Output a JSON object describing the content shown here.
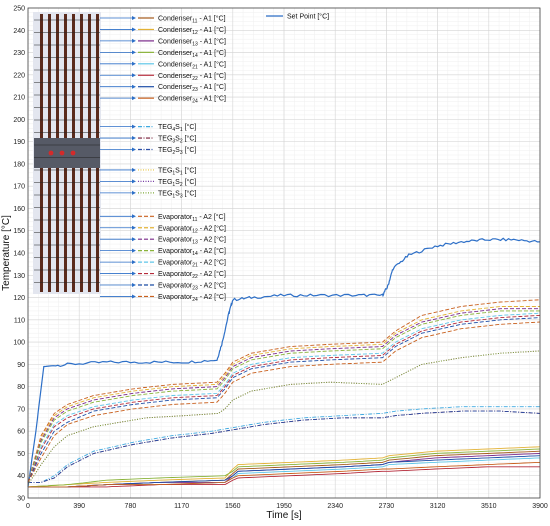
{
  "chart_data": {
    "type": "line",
    "xlabel": "Time [s]",
    "ylabel": "Temperature [°C]",
    "xlim": [
      0,
      3900
    ],
    "ylim": [
      30,
      250
    ],
    "xticks": [
      0,
      390,
      780,
      1170,
      1560,
      1950,
      2340,
      2730,
      3120,
      3510,
      3900
    ],
    "yticks": [
      30,
      40,
      50,
      60,
      70,
      80,
      90,
      100,
      110,
      120,
      130,
      140,
      150,
      160,
      170,
      180,
      190,
      200,
      210,
      220,
      230,
      240,
      250
    ],
    "grid": true,
    "legend_placement": "top-left",
    "series": [
      {
        "name": "Set Point [°C]",
        "color": "#2d6fc7",
        "dash": "solid",
        "x": [
          0,
          60,
          120,
          300,
          600,
          900,
          1200,
          1440,
          1480,
          1530,
          1560,
          1700,
          1950,
          2200,
          2500,
          2700,
          2740,
          2780,
          2900,
          3100,
          3300,
          3500,
          3700,
          3900
        ],
        "y": [
          35,
          60,
          89,
          90,
          91,
          91,
          91,
          92,
          100,
          113,
          119,
          120,
          121,
          121,
          121,
          121,
          125,
          133,
          139,
          143,
          145,
          146,
          146,
          145
        ]
      },
      {
        "name": "Condenser11 - A1 [°C]",
        "color": "#a55a1c",
        "dash": "solid",
        "x": [
          0,
          300,
          600,
          1000,
          1500,
          1560,
          1600,
          2000,
          2400,
          2700,
          2750,
          3100,
          3500,
          3900
        ],
        "y": [
          35,
          35,
          36,
          37,
          38,
          41,
          43,
          44,
          45,
          46,
          47,
          49,
          50,
          51
        ]
      },
      {
        "name": "Condenser12 - A1 [°C]",
        "color": "#e3b236",
        "dash": "solid",
        "x": [
          0,
          300,
          600,
          1000,
          1500,
          1560,
          1600,
          2000,
          2400,
          2700,
          2750,
          3100,
          3500,
          3900
        ],
        "y": [
          35,
          36,
          37,
          38,
          39,
          43,
          45,
          46,
          47,
          48,
          49,
          51,
          52,
          53
        ]
      },
      {
        "name": "Condenser13 - A1 [°C]",
        "color": "#7a2a8a",
        "dash": "solid",
        "x": [
          0,
          300,
          600,
          1000,
          1500,
          1560,
          1600,
          2000,
          2400,
          2700,
          2750,
          3100,
          3500,
          3900
        ],
        "y": [
          35,
          35,
          36,
          37,
          37,
          40,
          42,
          43,
          44,
          45,
          46,
          48,
          49,
          50
        ]
      },
      {
        "name": "Condenser14 - A1 [°C]",
        "color": "#8ab33a",
        "dash": "solid",
        "x": [
          0,
          300,
          600,
          1000,
          1500,
          1560,
          1600,
          2000,
          2400,
          2700,
          2750,
          3100,
          3500,
          3900
        ],
        "y": [
          35,
          36,
          38,
          39,
          40,
          42,
          44,
          45,
          46,
          47,
          48,
          50,
          51,
          52
        ]
      },
      {
        "name": "Condenser21 - A1 [°C]",
        "color": "#5fc6e8",
        "dash": "solid",
        "x": [
          0,
          300,
          600,
          1000,
          1500,
          1560,
          1600,
          2000,
          2400,
          2700,
          2750,
          3100,
          3500,
          3900
        ],
        "y": [
          35,
          35,
          36,
          36,
          37,
          39,
          41,
          42,
          43,
          44,
          45,
          46,
          47,
          48
        ]
      },
      {
        "name": "Condenser22 - A1 [°C]",
        "color": "#b52a3a",
        "dash": "solid",
        "x": [
          0,
          300,
          600,
          1000,
          1500,
          1560,
          1600,
          2000,
          2400,
          2700,
          2750,
          3100,
          3500,
          3900
        ],
        "y": [
          35,
          35,
          35,
          36,
          36,
          38,
          39,
          40,
          41,
          42,
          42,
          43,
          44,
          44
        ]
      },
      {
        "name": "Condenser23 - A1 [°C]",
        "color": "#1f4fa8",
        "dash": "solid",
        "x": [
          0,
          300,
          600,
          1000,
          1500,
          1560,
          1600,
          2000,
          2400,
          2700,
          2750,
          3100,
          3500,
          3900
        ],
        "y": [
          35,
          35,
          36,
          37,
          38,
          40,
          42,
          43,
          44,
          45,
          46,
          47,
          48,
          49
        ]
      },
      {
        "name": "Condenser24 - A1 [°C]",
        "color": "#c9601e",
        "dash": "solid",
        "x": [
          0,
          300,
          600,
          1000,
          1500,
          1560,
          1600,
          2000,
          2400,
          2700,
          2750,
          3100,
          3500,
          3900
        ],
        "y": [
          35,
          35,
          36,
          36,
          37,
          39,
          40,
          41,
          42,
          43,
          43,
          44,
          45,
          46
        ]
      },
      {
        "name": "TEG4S1 [°C]",
        "color": "#3fa9e0",
        "dash": "dashdot",
        "x": [
          0,
          100,
          200,
          300,
          500,
          800,
          1100,
          1400,
          1500,
          1600,
          1800,
          2100,
          2400,
          2700,
          2800,
          3000,
          3300,
          3600,
          3900
        ],
        "y": [
          37,
          37,
          40,
          45,
          51,
          55,
          58,
          60,
          61,
          62,
          64,
          66,
          67,
          68,
          69,
          70,
          71,
          71,
          71
        ]
      },
      {
        "name": "TEG3S2 [°C]",
        "color": "#7a1f3a",
        "dash": "dashdot",
        "x": [
          0,
          100,
          200,
          300,
          500,
          800,
          1100,
          1400,
          1500,
          1600,
          1800,
          2100,
          2400,
          2700,
          2800,
          3000,
          3300,
          3600,
          3900
        ],
        "y": [
          37,
          37,
          39,
          44,
          50,
          54,
          57,
          59,
          60,
          61,
          63,
          65,
          66,
          66,
          67,
          68,
          69,
          69,
          68
        ]
      },
      {
        "name": "TEG2S3 [°C]",
        "color": "#2a4ea6",
        "dash": "dashdot",
        "x": [
          0,
          100,
          200,
          300,
          500,
          800,
          1100,
          1400,
          1500,
          1600,
          1800,
          2100,
          2400,
          2700,
          2800,
          3000,
          3300,
          3600,
          3900
        ],
        "y": [
          37,
          37,
          39,
          44,
          50,
          54,
          57,
          59,
          60,
          61,
          63,
          65,
          66,
          66,
          67,
          68,
          69,
          69,
          68
        ]
      },
      {
        "name": "TEG1S1 [°C]",
        "color": "#e6c33a",
        "dash": "dotted",
        "x": [
          0,
          100,
          200,
          300,
          500,
          700,
          900,
          1200,
          1450,
          1500,
          1560,
          1700,
          2000,
          2300,
          2700,
          2800,
          3000,
          3300,
          3600,
          3900
        ],
        "y": [
          36,
          45,
          53,
          58,
          62,
          64,
          66,
          67,
          68,
          70,
          74,
          78,
          81,
          82,
          81,
          84,
          90,
          93,
          95,
          96
        ]
      },
      {
        "name": "TEG1S2 [°C]",
        "color": "#7a3fa8",
        "dash": "dotted",
        "x": [
          0,
          100,
          200,
          300,
          500,
          700,
          900,
          1200,
          1450,
          1500,
          1560,
          1700,
          2000,
          2300,
          2700,
          2800,
          3000,
          3300,
          3600,
          3900
        ],
        "y": [
          36,
          45,
          53,
          58,
          62,
          64,
          66,
          67,
          68,
          70,
          74,
          78,
          81,
          82,
          81,
          84,
          90,
          93,
          95,
          96
        ]
      },
      {
        "name": "TEG1S3 [°C]",
        "color": "#7fa83a",
        "dash": "dotted",
        "x": [
          0,
          100,
          200,
          300,
          500,
          700,
          900,
          1200,
          1450,
          1500,
          1560,
          1700,
          2000,
          2300,
          2700,
          2800,
          3000,
          3300,
          3600,
          3900
        ],
        "y": [
          36,
          45,
          53,
          58,
          62,
          64,
          66,
          67,
          68,
          70,
          74,
          78,
          81,
          82,
          81,
          84,
          90,
          93,
          95,
          96
        ]
      },
      {
        "name": "Evaporator11 - A2 [°C]",
        "color": "#c9601e",
        "dash": "dashed",
        "x": [
          0,
          100,
          200,
          300,
          500,
          800,
          1100,
          1440,
          1500,
          1560,
          1700,
          2000,
          2300,
          2700,
          2800,
          3000,
          3300,
          3600,
          3900
        ],
        "y": [
          37,
          58,
          68,
          72,
          76,
          79,
          81,
          82,
          86,
          91,
          95,
          98,
          99,
          100,
          105,
          112,
          116,
          118,
          119
        ]
      },
      {
        "name": "Evaporator12 - A2 [°C]",
        "color": "#e3b236",
        "dash": "dashed",
        "x": [
          0,
          100,
          200,
          300,
          500,
          800,
          1100,
          1440,
          1500,
          1560,
          1700,
          2000,
          2300,
          2700,
          2800,
          3000,
          3300,
          3600,
          3900
        ],
        "y": [
          37,
          57,
          67,
          71,
          75,
          78,
          80,
          81,
          85,
          90,
          94,
          97,
          98,
          99,
          104,
          110,
          114,
          116,
          116
        ]
      },
      {
        "name": "Evaporator13 - A2 [°C]",
        "color": "#7a2a8a",
        "dash": "dashed",
        "x": [
          0,
          100,
          200,
          300,
          500,
          800,
          1100,
          1440,
          1500,
          1560,
          1700,
          2000,
          2300,
          2700,
          2800,
          3000,
          3300,
          3600,
          3900
        ],
        "y": [
          37,
          56,
          66,
          70,
          74,
          77,
          79,
          80,
          84,
          89,
          93,
          96,
          97,
          98,
          103,
          109,
          113,
          115,
          115
        ]
      },
      {
        "name": "Evaporator14 - A2 [°C]",
        "color": "#8ab33a",
        "dash": "dashed",
        "x": [
          0,
          100,
          200,
          300,
          500,
          800,
          1100,
          1440,
          1500,
          1560,
          1700,
          2000,
          2300,
          2700,
          2800,
          3000,
          3300,
          3600,
          3900
        ],
        "y": [
          37,
          55,
          65,
          69,
          73,
          76,
          78,
          79,
          83,
          88,
          92,
          95,
          96,
          97,
          102,
          108,
          112,
          114,
          114
        ]
      },
      {
        "name": "Evaporator21 - A2 [°C]",
        "color": "#5fc6e8",
        "dash": "dashed",
        "x": [
          0,
          100,
          200,
          300,
          500,
          800,
          1100,
          1440,
          1500,
          1560,
          1700,
          2000,
          2300,
          2700,
          2800,
          3000,
          3300,
          3600,
          3900
        ],
        "y": [
          37,
          53,
          63,
          67,
          71,
          74,
          76,
          77,
          81,
          86,
          90,
          93,
          94,
          95,
          100,
          106,
          110,
          112,
          113
        ]
      },
      {
        "name": "Evaporator22 - A2 [°C]",
        "color": "#b52a3a",
        "dash": "dashed",
        "x": [
          0,
          100,
          200,
          300,
          500,
          800,
          1100,
          1440,
          1500,
          1560,
          1700,
          2000,
          2300,
          2700,
          2800,
          3000,
          3300,
          3600,
          3900
        ],
        "y": [
          37,
          52,
          62,
          66,
          70,
          73,
          75,
          76,
          80,
          85,
          89,
          92,
          93,
          94,
          99,
          105,
          109,
          111,
          112
        ]
      },
      {
        "name": "Evaporator23 - A2 [°C]",
        "color": "#1f4fa8",
        "dash": "dashed",
        "x": [
          0,
          100,
          200,
          300,
          500,
          800,
          1100,
          1440,
          1500,
          1560,
          1700,
          2000,
          2300,
          2700,
          2800,
          3000,
          3300,
          3600,
          3900
        ],
        "y": [
          37,
          50,
          60,
          64,
          69,
          72,
          74,
          75,
          79,
          84,
          88,
          91,
          92,
          93,
          98,
          104,
          108,
          110,
          111
        ]
      },
      {
        "name": "Evaporator24 - A2 [°C]",
        "color": "#c9601e",
        "dash": "dashed",
        "x": [
          0,
          100,
          200,
          300,
          500,
          800,
          1100,
          1440,
          1500,
          1560,
          1700,
          2000,
          2300,
          2700,
          2800,
          3000,
          3300,
          3600,
          3900
        ],
        "y": [
          37,
          48,
          58,
          63,
          67,
          70,
          72,
          73,
          77,
          82,
          86,
          89,
          90,
          91,
          96,
          102,
          106,
          108,
          109
        ]
      }
    ],
    "legend": {
      "entries": [
        {
          "main": "Condenser",
          "sub": "11",
          "rest": " - A1 [°C]"
        },
        {
          "main": "Condenser",
          "sub": "12",
          "rest": " - A1 [°C]"
        },
        {
          "main": "Condenser",
          "sub": "13",
          "rest": " - A1 [°C]"
        },
        {
          "main": "Condenser",
          "sub": "14",
          "rest": " - A1 [°C]"
        },
        {
          "main": "Condenser",
          "sub": "21",
          "rest": " - A1 [°C]"
        },
        {
          "main": "Condenser",
          "sub": "22",
          "rest": " - A1 [°C]"
        },
        {
          "main": "Condenser",
          "sub": "23",
          "rest": " - A1 [°C]"
        },
        {
          "main": "Condenser",
          "sub": "24",
          "rest": " - A1 [°C]"
        },
        {
          "main": "TEG",
          "sub": "4",
          "mid": "S",
          "sub2": "1",
          "rest": " [°C]"
        },
        {
          "main": "TEG",
          "sub": "3",
          "mid": "S",
          "sub2": "2",
          "rest": " [°C]"
        },
        {
          "main": "TEG",
          "sub": "2",
          "mid": "S",
          "sub2": "3",
          "rest": " [°C]"
        },
        {
          "main": "TEG",
          "sub": "1",
          "mid": "S",
          "sub2": "1",
          "rest": " [°C]"
        },
        {
          "main": "TEG",
          "sub": "1",
          "mid": "S",
          "sub2": "2",
          "rest": " [°C]"
        },
        {
          "main": "TEG",
          "sub": "1",
          "mid": "S",
          "sub2": "3",
          "rest": " [°C]"
        },
        {
          "main": "Evaporator",
          "sub": "11",
          "rest": " - A2 [°C]"
        },
        {
          "main": "Evaporator",
          "sub": "12",
          "rest": " - A2 [°C]"
        },
        {
          "main": "Evaporator",
          "sub": "13",
          "rest": " - A2 [°C]"
        },
        {
          "main": "Evaporator",
          "sub": "14",
          "rest": " - A2 [°C]"
        },
        {
          "main": "Evaporator",
          "sub": "21",
          "rest": " - A2 [°C]"
        },
        {
          "main": "Evaporator",
          "sub": "22",
          "rest": " - A2 [°C]"
        },
        {
          "main": "Evaporator",
          "sub": "23",
          "rest": " - A2 [°C]"
        },
        {
          "main": "Evaporator",
          "sub": "24",
          "rest": " - A2 [°C]"
        }
      ],
      "setpoint": "Set Point [°C]"
    }
  }
}
